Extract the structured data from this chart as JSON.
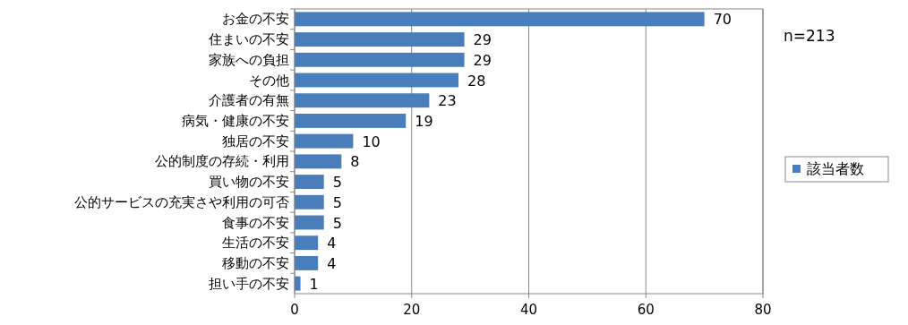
{
  "chart_data": {
    "type": "bar",
    "orientation": "horizontal",
    "categories": [
      "お金の不安",
      "住まいの不安",
      "家族への負担",
      "その他",
      "介護者の有無",
      "病気・健康の不安",
      "独居の不安",
      "公的制度の存続・利用",
      "買い物の不安",
      "公的サービスの充実さや利用の可否",
      "食事の不安",
      "生活の不安",
      "移動の不安",
      "担い手の不安"
    ],
    "series": [
      {
        "name": "該当者数",
        "color": "#4a7ebb",
        "values": [
          70,
          29,
          29,
          28,
          23,
          19,
          10,
          8,
          5,
          5,
          5,
          4,
          4,
          1
        ]
      }
    ],
    "xlim": [
      0,
      80
    ],
    "xticks": [
      0,
      20,
      40,
      60,
      80
    ],
    "grid": "x",
    "legend": "right",
    "data_labels": true,
    "annotations": [
      "n=213"
    ]
  }
}
